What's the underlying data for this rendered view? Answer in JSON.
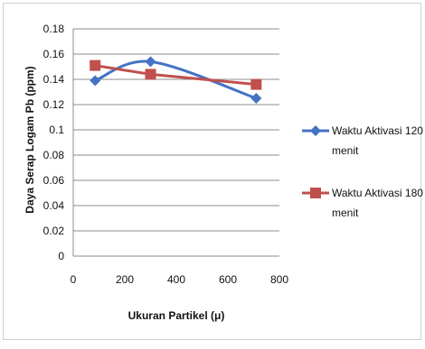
{
  "chart_data": {
    "type": "line",
    "title": "",
    "xlabel": "Ukuran Partikel (μ)",
    "ylabel": "Daya Serap Logam Pb (ppm)",
    "xlim": [
      0,
      800
    ],
    "ylim": [
      0,
      0.18
    ],
    "xticks": [
      0,
      200,
      400,
      600,
      800
    ],
    "yticks": [
      0,
      0.02,
      0.04,
      0.06,
      0.08,
      0.1,
      0.12,
      0.14,
      0.16,
      0.18
    ],
    "xtick_labels": [
      "0",
      "200",
      "400",
      "600",
      "800"
    ],
    "ytick_labels": [
      "0",
      "0.02",
      "0.04",
      "0.06",
      "0.08",
      "0.1",
      "0.12",
      "0.14",
      "0.16",
      "0.18"
    ],
    "grid": "horizontal",
    "legend_position": "right",
    "series": [
      {
        "name": "Waktu Aktivasi 120 menit",
        "legend_lines": [
          "Waktu Aktivasi 120",
          "menit"
        ],
        "color": "#4472C4",
        "marker": "diamond",
        "smooth": true,
        "x": [
          85,
          300,
          710
        ],
        "y": [
          0.139,
          0.154,
          0.125
        ]
      },
      {
        "name": "Waktu Aktivasi 180 menit",
        "legend_lines": [
          "Waktu Aktivasi 180",
          "menit"
        ],
        "color": "#C0504D",
        "marker": "square",
        "smooth": false,
        "x": [
          85,
          300,
          710
        ],
        "y": [
          0.151,
          0.144,
          0.136
        ]
      }
    ]
  }
}
